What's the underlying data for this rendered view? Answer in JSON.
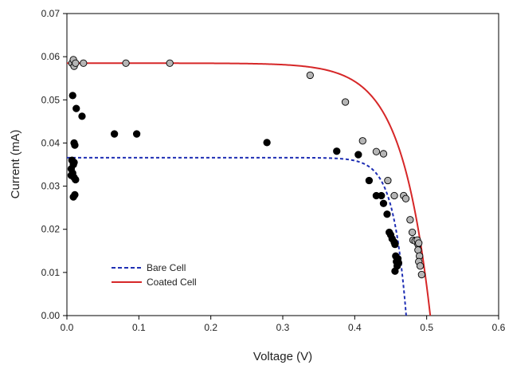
{
  "chart_data": {
    "type": "scatter",
    "title": "",
    "xlabel": "Voltage (V)",
    "ylabel": "Current (mA)",
    "xlim": [
      0,
      0.6
    ],
    "ylim": [
      0,
      0.07
    ],
    "x_ticks": [
      "0.0",
      "0.1",
      "0.2",
      "0.3",
      "0.4",
      "0.5",
      "0.6"
    ],
    "y_ticks": [
      "0.00",
      "0.01",
      "0.02",
      "0.03",
      "0.04",
      "0.05",
      "0.06",
      "0.07"
    ],
    "grid": false,
    "legend_position": "bottom-left",
    "series": [
      {
        "name": "Bare Cell",
        "style": "dashed",
        "color": "#1f2fb4",
        "isc": 0.0366,
        "voc": 0.4715,
        "n": 0.018
      },
      {
        "name": "Coated Cell",
        "style": "solid",
        "color": "#d62728",
        "isc": 0.0585,
        "voc": 0.505,
        "n": 0.04
      }
    ],
    "points": [
      {
        "marker_color": "#000000",
        "values": [
          [
            0.008,
            0.051
          ],
          [
            0.007,
            0.036
          ],
          [
            0.009,
            0.035
          ],
          [
            0.01,
            0.0355
          ],
          [
            0.006,
            0.034
          ],
          [
            0.008,
            0.033
          ],
          [
            0.01,
            0.032
          ],
          [
            0.006,
            0.0325
          ],
          [
            0.012,
            0.0315
          ],
          [
            0.009,
            0.0275
          ],
          [
            0.011,
            0.028
          ],
          [
            0.01,
            0.04
          ],
          [
            0.011,
            0.0395
          ],
          [
            0.013,
            0.048
          ],
          [
            0.021,
            0.0462
          ],
          [
            0.066,
            0.0421
          ],
          [
            0.097,
            0.0421
          ],
          [
            0.278,
            0.0401
          ],
          [
            0.375,
            0.0381
          ],
          [
            0.405,
            0.0373
          ],
          [
            0.42,
            0.0313
          ],
          [
            0.43,
            0.0278
          ],
          [
            0.437,
            0.0278
          ],
          [
            0.44,
            0.026
          ],
          [
            0.445,
            0.0235
          ],
          [
            0.448,
            0.0193
          ],
          [
            0.45,
            0.0187
          ],
          [
            0.452,
            0.0178
          ],
          [
            0.455,
            0.017
          ],
          [
            0.456,
            0.0165
          ],
          [
            0.457,
            0.0138
          ],
          [
            0.458,
            0.0125
          ],
          [
            0.459,
            0.0115
          ],
          [
            0.456,
            0.0103
          ],
          [
            0.46,
            0.0132
          ],
          [
            0.461,
            0.0122
          ]
        ]
      },
      {
        "marker_color": "#b5b5b5",
        "values": [
          [
            0.007,
            0.0585
          ],
          [
            0.009,
            0.0593
          ],
          [
            0.01,
            0.0578
          ],
          [
            0.012,
            0.0585
          ],
          [
            0.023,
            0.0585
          ],
          [
            0.082,
            0.0585
          ],
          [
            0.143,
            0.0585
          ],
          [
            0.338,
            0.0557
          ],
          [
            0.387,
            0.0495
          ],
          [
            0.411,
            0.0405
          ],
          [
            0.43,
            0.038
          ],
          [
            0.44,
            0.0375
          ],
          [
            0.446,
            0.0313
          ],
          [
            0.455,
            0.0278
          ],
          [
            0.468,
            0.0278
          ],
          [
            0.471,
            0.0271
          ],
          [
            0.477,
            0.0222
          ],
          [
            0.48,
            0.0193
          ],
          [
            0.481,
            0.0175
          ],
          [
            0.484,
            0.0173
          ],
          [
            0.487,
            0.0175
          ],
          [
            0.488,
            0.0165
          ],
          [
            0.489,
            0.0168
          ],
          [
            0.488,
            0.0152
          ],
          [
            0.49,
            0.0138
          ],
          [
            0.489,
            0.0125
          ],
          [
            0.491,
            0.0115
          ],
          [
            0.493,
            0.0095
          ]
        ]
      }
    ]
  }
}
